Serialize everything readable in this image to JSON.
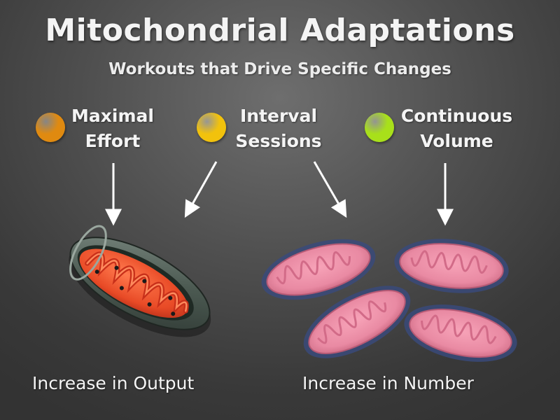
{
  "title": "Mitochondrial Adaptations",
  "subtitle": "Workouts that Drive Specific Changes",
  "categories": [
    {
      "line1": "Maximal",
      "line2": "Effort",
      "dot_color": "#e08a10"
    },
    {
      "line1": "Interval",
      "line2": "Sessions",
      "dot_color": "#f2c20c"
    },
    {
      "line1": "Continuous",
      "line2": "Volume",
      "dot_color": "#a8e01a"
    }
  ],
  "outcomes": {
    "output": "Increase in Output",
    "number": "Increase in Number"
  },
  "illustrations": {
    "left": "mitochondrion-cross-section-icon",
    "right": "mitochondria-group-icon"
  }
}
